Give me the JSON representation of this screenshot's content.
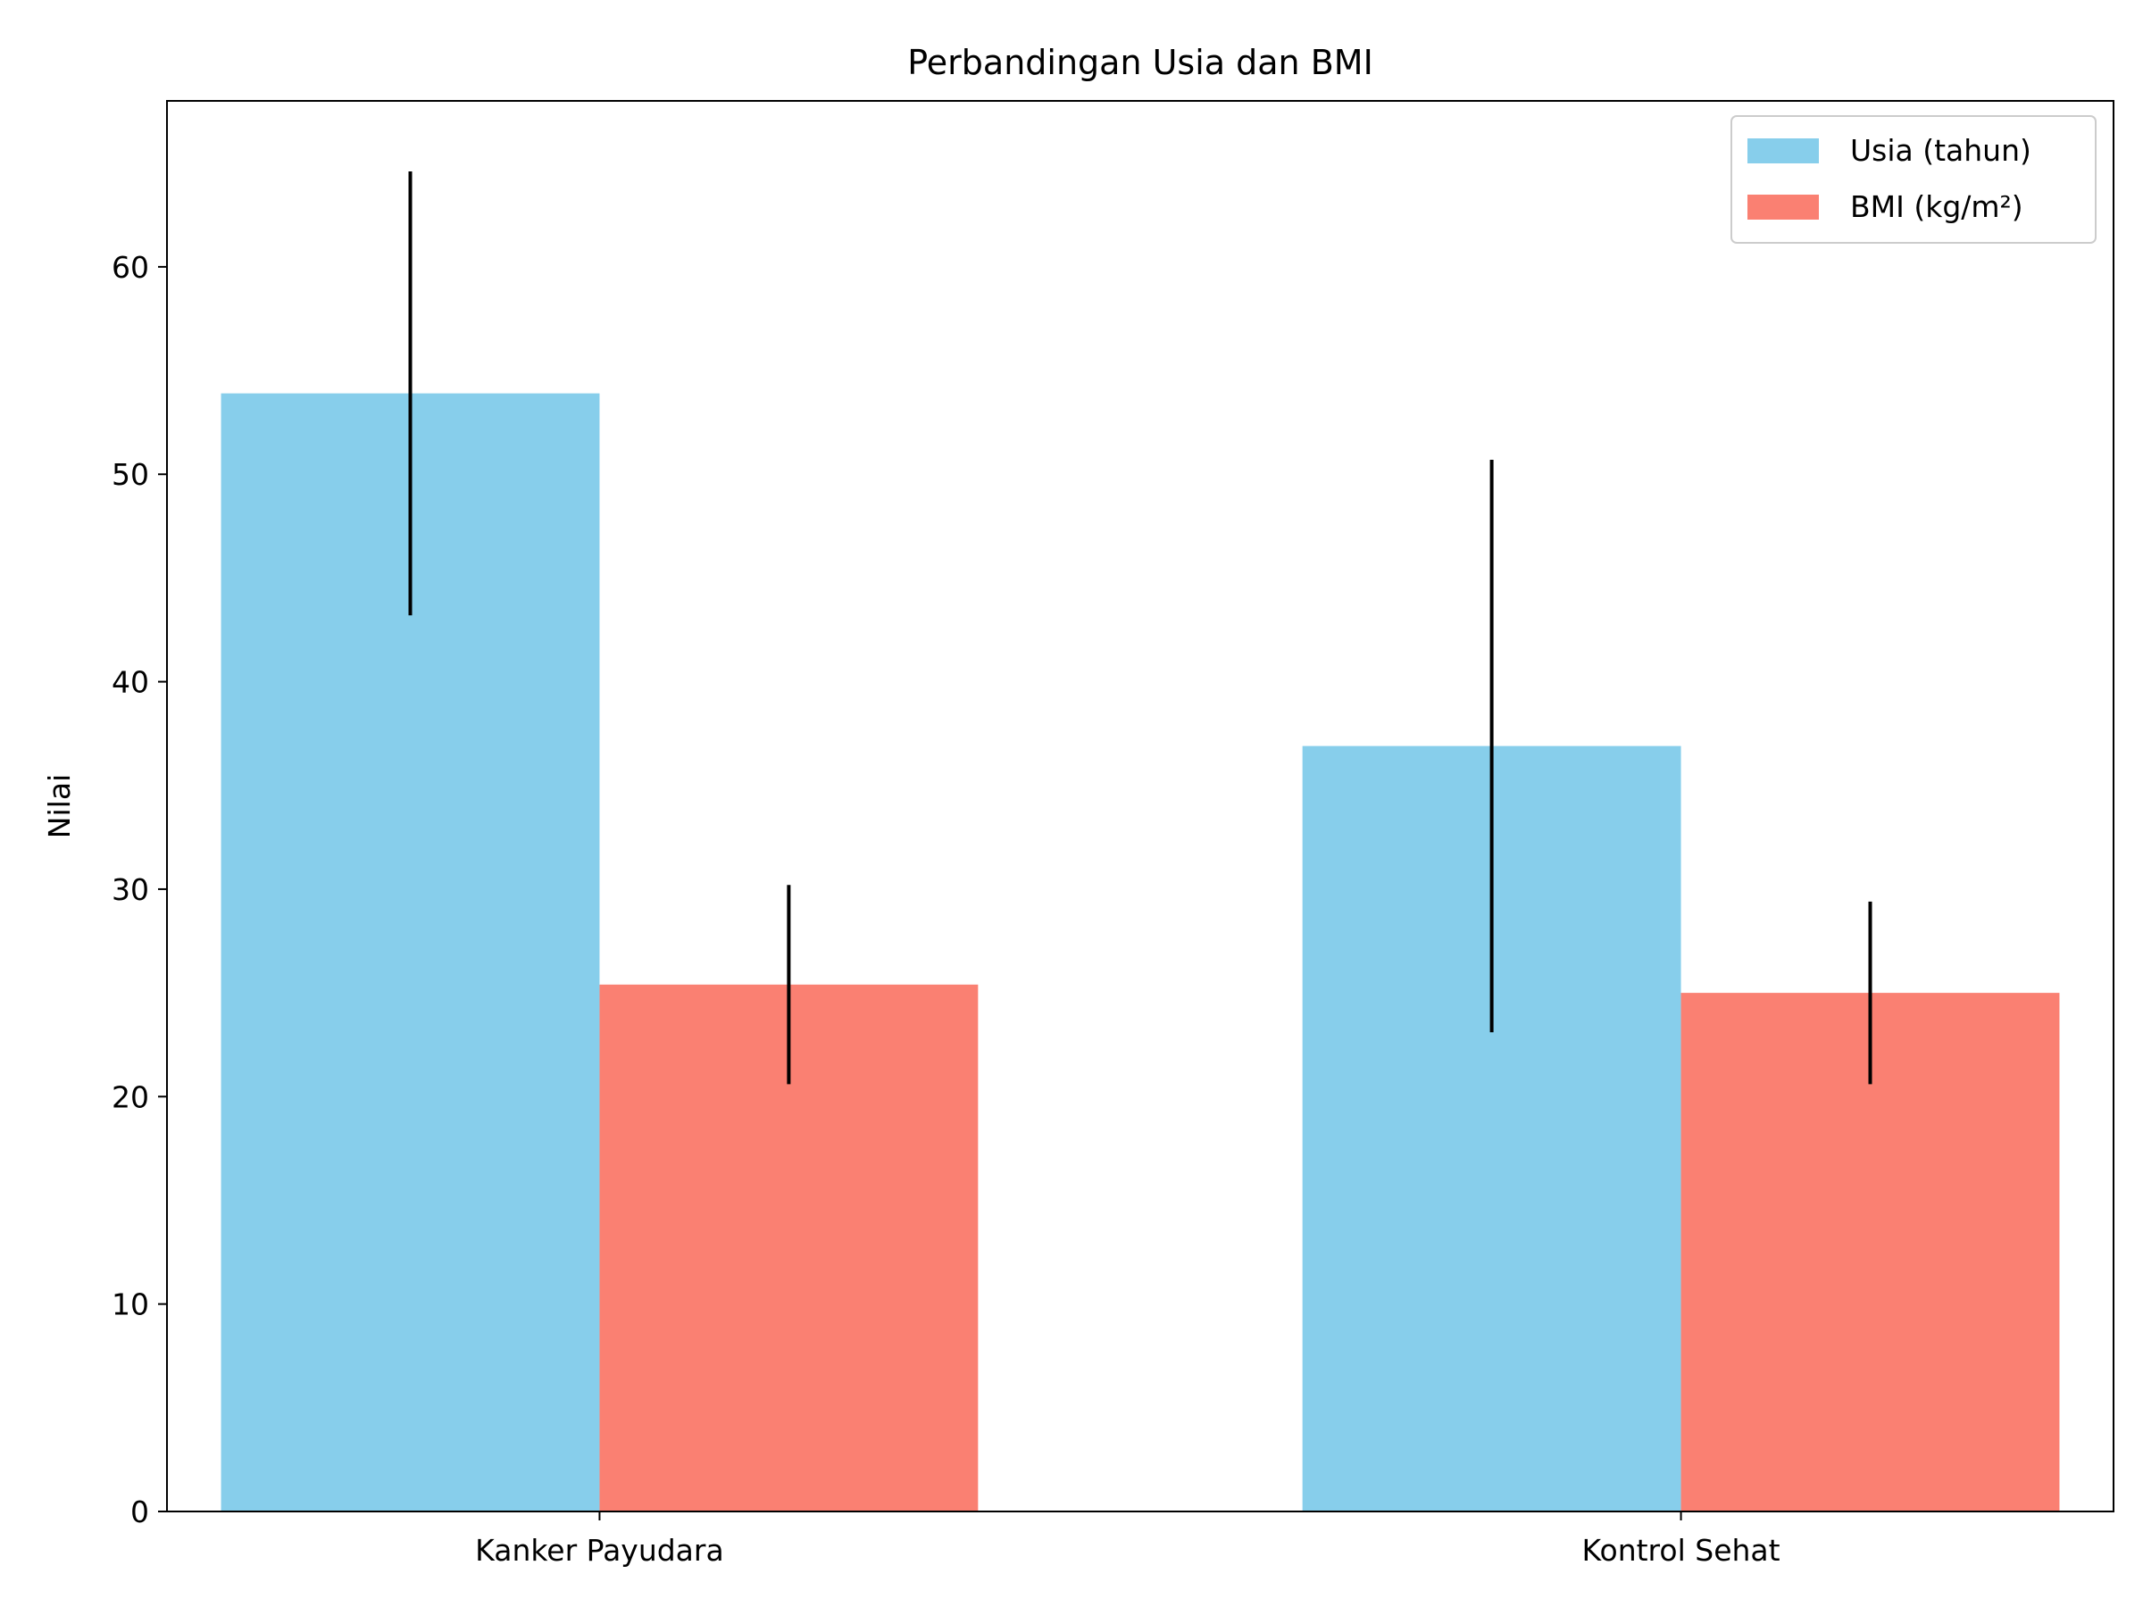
{
  "chart_data": {
    "type": "bar",
    "title": "Perbandingan Usia dan BMI",
    "xlabel": "",
    "ylabel": "Nilai",
    "categories": [
      "Kanker Payudara",
      "Kontrol Sehat"
    ],
    "ylim": [
      0,
      68
    ],
    "yticks": [
      0,
      10,
      20,
      30,
      40,
      50,
      60
    ],
    "grid": false,
    "legend_position": "top-right",
    "series": [
      {
        "name": "Usia (tahun)",
        "color": "#87CEEB",
        "values": [
          53.9,
          36.9
        ],
        "error": [
          10.7,
          13.8
        ]
      },
      {
        "name": "BMI (kg/m²)",
        "color": "#FA8072",
        "values": [
          25.4,
          25.0
        ],
        "error": [
          4.8,
          4.4
        ]
      }
    ]
  }
}
